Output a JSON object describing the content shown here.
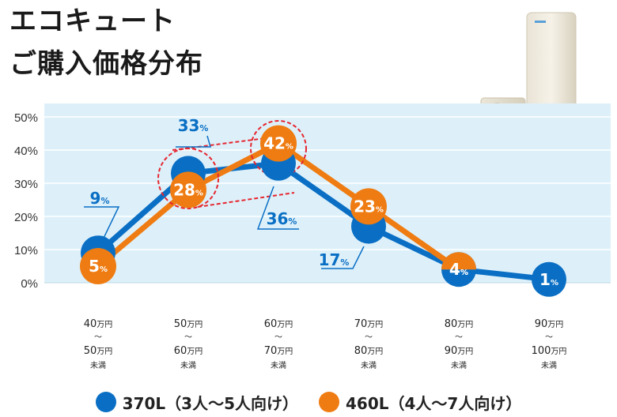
{
  "title_line1": "エコキュート",
  "title_line2": "ご購入価格分布",
  "colors": {
    "blue": "#0a6fc4",
    "orange": "#ef7c12",
    "bg_band": "#ddf0fa",
    "grid": "#ffffff",
    "callout_line": "#0a6fc4",
    "highlight_dash": "#e6262f"
  },
  "chart_data": {
    "type": "line",
    "title": "ご購入価格分布",
    "ylim": [
      0,
      50
    ],
    "y_ticks": [
      "0%",
      "10%",
      "20%",
      "30%",
      "40%",
      "50%"
    ],
    "categories": [
      {
        "top": "40",
        "top_unit": "万円",
        "mid": "～",
        "bottom": "50",
        "bottom_unit": "万円",
        "suffix": "未満"
      },
      {
        "top": "50",
        "top_unit": "万円",
        "mid": "～",
        "bottom": "60",
        "bottom_unit": "万円",
        "suffix": "未満"
      },
      {
        "top": "60",
        "top_unit": "万円",
        "mid": "～",
        "bottom": "70",
        "bottom_unit": "万円",
        "suffix": "未満"
      },
      {
        "top": "70",
        "top_unit": "万円",
        "mid": "～",
        "bottom": "80",
        "bottom_unit": "万円",
        "suffix": "未満"
      },
      {
        "top": "80",
        "top_unit": "万円",
        "mid": "～",
        "bottom": "90",
        "bottom_unit": "万円",
        "suffix": "未満"
      },
      {
        "top": "90",
        "top_unit": "万円",
        "mid": "～",
        "bottom": "100",
        "bottom_unit": "万円",
        "suffix": "未満"
      }
    ],
    "series": [
      {
        "name": "370L（3人～5人向け）",
        "color": "#0a6fc4",
        "values": [
          9,
          33,
          36,
          17,
          4,
          1
        ]
      },
      {
        "name": "460L（4人～7人向け）",
        "color": "#ef7c12",
        "values": [
          5,
          28,
          42,
          23,
          4,
          null
        ]
      }
    ],
    "highlight": "Series maxima circled with red dashed outlines; 33% and 28% enclosed together in a dashed box",
    "grid": true,
    "legend_position": "bottom"
  },
  "legend": [
    {
      "label": "370L（3人～5人向け）",
      "color": "#0a6fc4"
    },
    {
      "label": "460L（4人～7人向け）",
      "color": "#ef7c12"
    }
  ],
  "pct_symbol": "%",
  "product_image": "eco-cute-heat-pump-unit-and-tank-image"
}
